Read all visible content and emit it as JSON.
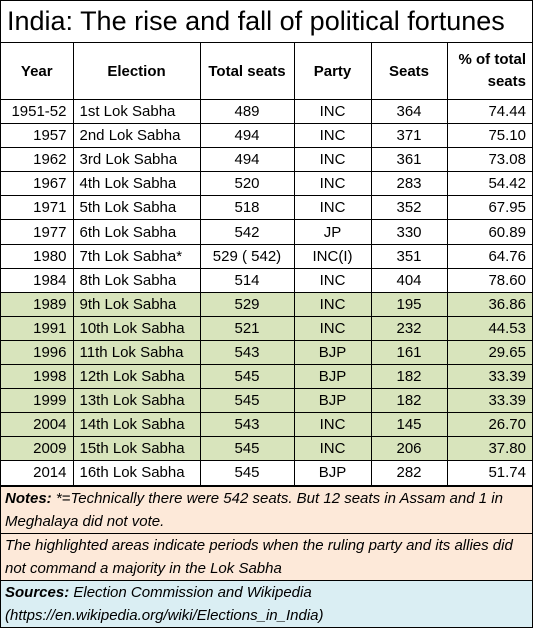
{
  "title": "India: The rise and fall of political fortunes",
  "headers": {
    "year": "Year",
    "election": "Election",
    "total_seats": "Total seats",
    "party": "Party",
    "seats": "Seats",
    "pct_line1": "% of total",
    "pct_line2": "seats"
  },
  "rows": [
    {
      "year": "1951-52",
      "election": "1st Lok Sabha",
      "total": "489",
      "party": "INC",
      "seats": "364",
      "pct": "74.44"
    },
    {
      "year": "1957",
      "election": "2nd Lok Sabha",
      "total": "494",
      "party": "INC",
      "seats": "371",
      "pct": "75.10"
    },
    {
      "year": "1962",
      "election": "3rd Lok Sabha",
      "total": "494",
      "party": "INC",
      "seats": "361",
      "pct": "73.08"
    },
    {
      "year": "1967",
      "election": "4th Lok Sabha",
      "total": "520",
      "party": "INC",
      "seats": "283",
      "pct": "54.42"
    },
    {
      "year": "1971",
      "election": "5th Lok Sabha",
      "total": "518",
      "party": "INC",
      "seats": "352",
      "pct": "67.95"
    },
    {
      "year": "1977",
      "election": "6th Lok Sabha",
      "total": "542",
      "party": "JP",
      "seats": "330",
      "pct": "60.89"
    },
    {
      "year": "1980",
      "election": "7th Lok Sabha*",
      "total": "529 ( 542)",
      "party": "INC(I)",
      "seats": "351",
      "pct": "64.76"
    },
    {
      "year": "1984",
      "election": "8th Lok Sabha",
      "total": "514",
      "party": "INC",
      "seats": "404",
      "pct": "78.60"
    },
    {
      "year": "1989",
      "election": "9th Lok Sabha",
      "total": "529",
      "party": "INC",
      "seats": "195",
      "pct": "36.86"
    },
    {
      "year": "1991",
      "election": "10th Lok Sabha",
      "total": "521",
      "party": "INC",
      "seats": "232",
      "pct": "44.53"
    },
    {
      "year": "1996",
      "election": "11th Lok Sabha",
      "total": "543",
      "party": "BJP",
      "seats": "161",
      "pct": "29.65"
    },
    {
      "year": "1998",
      "election": "12th Lok Sabha",
      "total": "545",
      "party": "BJP",
      "seats": "182",
      "pct": "33.39"
    },
    {
      "year": "1999",
      "election": "13th Lok Sabha",
      "total": "545",
      "party": "BJP",
      "seats": "182",
      "pct": "33.39"
    },
    {
      "year": "2004",
      "election": "14th Lok Sabha",
      "total": "543",
      "party": "INC",
      "seats": "145",
      "pct": "26.70"
    },
    {
      "year": "2009",
      "election": "15th Lok Sabha",
      "total": "545",
      "party": "INC",
      "seats": "206",
      "pct": "37.80"
    },
    {
      "year": "2014",
      "election": "16th Lok Sabha",
      "total": "545",
      "party": "BJP",
      "seats": "282",
      "pct": "51.74"
    }
  ],
  "notes": {
    "label": "Notes:",
    "text1": "*=Technically there were 542 seats.  But 12 seats in Assam and 1 in Meghalaya did not vote.",
    "text2": "The highlighted areas indicate periods when the ruling party and its allies did not command a majority in the Lok Sabha"
  },
  "sources": {
    "label": "Sources:",
    "text": "Election Commission and Wikipedia (https://en.wikipedia.org/wiki/Elections_in_India)"
  },
  "colors": {
    "highlight": "#d8e4bc",
    "notes_bg": "#fde9d9",
    "sources_bg": "#daeef3"
  }
}
